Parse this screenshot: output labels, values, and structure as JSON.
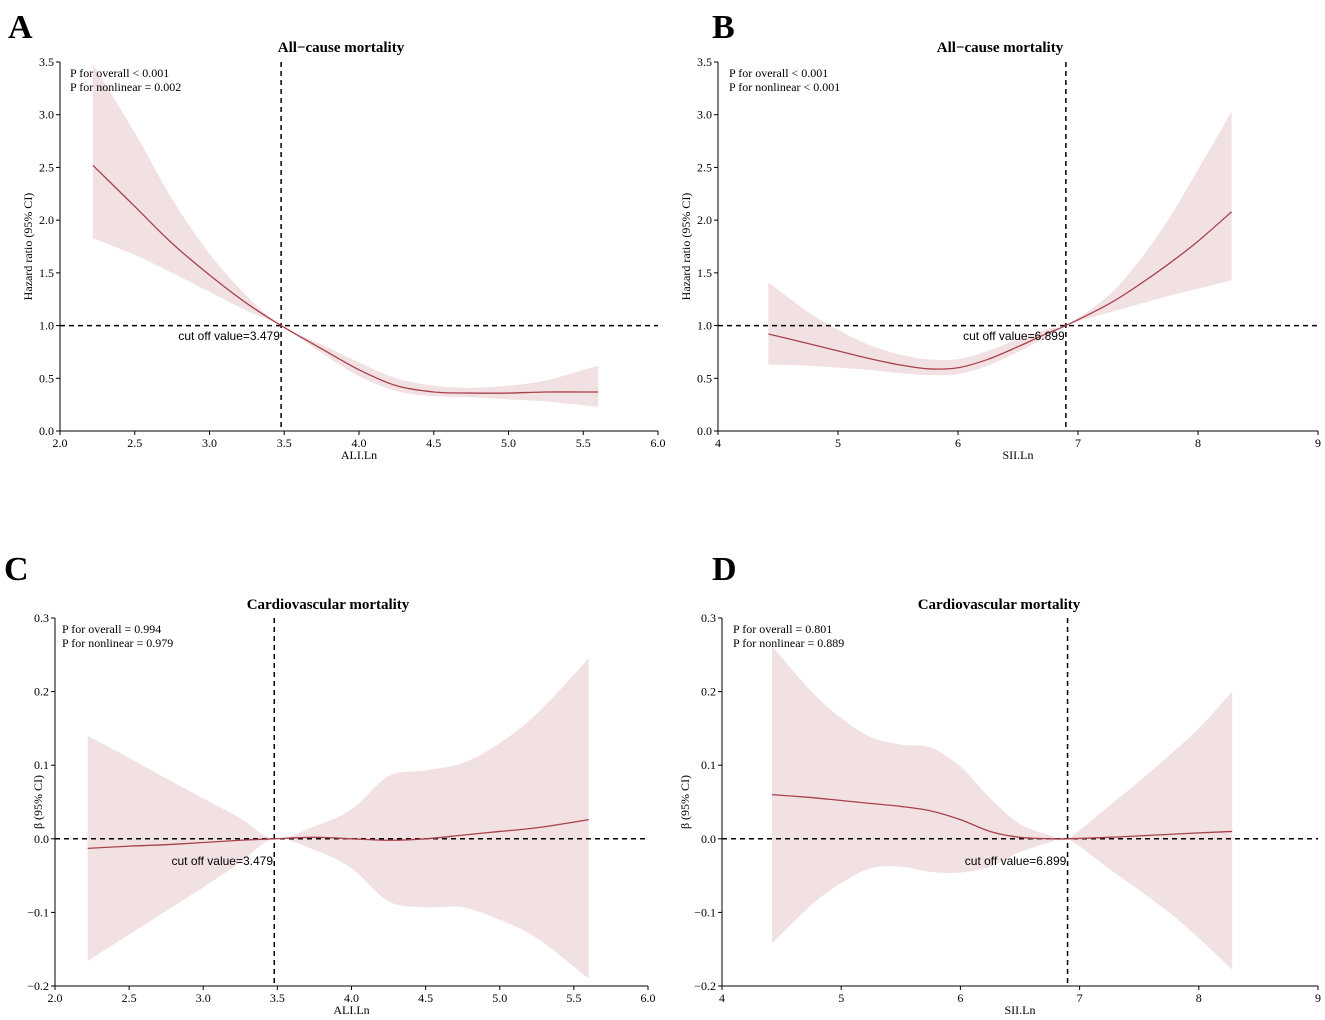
{
  "chart_data": [
    {
      "panel": "A",
      "type": "line",
      "title": "All−cause mortality",
      "xlabel": "ALI.Ln",
      "ylabel": "Hazard ratio (95% CI)",
      "xlim": [
        2.0,
        6.0
      ],
      "ylim": [
        0.0,
        3.5
      ],
      "xticks": [
        2.0,
        2.5,
        3.0,
        3.5,
        4.0,
        4.5,
        5.0,
        5.5,
        6.0
      ],
      "xtick_labels": [
        "2.0",
        "2.5",
        "3.0",
        "3.5",
        "4.0",
        "4.5",
        "5.0",
        "5.5",
        "6.0"
      ],
      "yticks": [
        0.0,
        0.5,
        1.0,
        1.5,
        2.0,
        2.5,
        3.0,
        3.5
      ],
      "ytick_labels": [
        "0.0",
        "0.5",
        "1.0",
        "1.5",
        "2.0",
        "2.5",
        "3.0",
        "3.5"
      ],
      "ref_y": 1.0,
      "cutoff_x": 3.479,
      "annotations": [
        "P for overall < 0.001",
        "P for nonlinear = 0.002"
      ],
      "cutoff_label": "cut off value=3.479",
      "cutoff_label_pos": "below",
      "x": [
        2.22,
        2.5,
        2.75,
        3.0,
        3.25,
        3.479,
        3.75,
        4.0,
        4.25,
        4.5,
        4.75,
        5.0,
        5.25,
        5.6
      ],
      "y": [
        2.52,
        2.13,
        1.78,
        1.48,
        1.21,
        1.0,
        0.78,
        0.58,
        0.43,
        0.37,
        0.36,
        0.36,
        0.37,
        0.37
      ],
      "lower": [
        1.83,
        1.67,
        1.5,
        1.32,
        1.14,
        1.0,
        0.74,
        0.52,
        0.38,
        0.33,
        0.32,
        0.3,
        0.28,
        0.23
      ],
      "upper": [
        3.48,
        2.83,
        2.2,
        1.68,
        1.28,
        1.0,
        0.82,
        0.65,
        0.5,
        0.43,
        0.41,
        0.43,
        0.48,
        0.62
      ]
    },
    {
      "panel": "B",
      "type": "line",
      "title": "All−cause mortality",
      "xlabel": "SII.Ln",
      "ylabel": "Hazard ratio (95% CI)",
      "xlim": [
        4,
        9
      ],
      "ylim": [
        0.0,
        3.5
      ],
      "xticks": [
        4,
        5,
        6,
        7,
        8,
        9
      ],
      "xtick_labels": [
        "4",
        "5",
        "6",
        "7",
        "8",
        "9"
      ],
      "yticks": [
        0.0,
        0.5,
        1.0,
        1.5,
        2.0,
        2.5,
        3.0,
        3.5
      ],
      "ytick_labels": [
        "0.0",
        "0.5",
        "1.0",
        "1.5",
        "2.0",
        "2.5",
        "3.0",
        "3.5"
      ],
      "ref_y": 1.0,
      "cutoff_x": 6.899,
      "annotations": [
        "P for overall < 0.001",
        "P for nonlinear < 0.001"
      ],
      "cutoff_label": "cut off value=6.899",
      "cutoff_label_pos": "below",
      "x": [
        4.42,
        4.75,
        5.0,
        5.25,
        5.5,
        5.75,
        6.0,
        6.25,
        6.5,
        6.75,
        6.899,
        7.25,
        7.5,
        7.75,
        8.0,
        8.28
      ],
      "y": [
        0.92,
        0.83,
        0.76,
        0.69,
        0.63,
        0.59,
        0.6,
        0.68,
        0.8,
        0.93,
        1.0,
        1.2,
        1.38,
        1.58,
        1.8,
        2.08
      ],
      "lower": [
        0.63,
        0.62,
        0.6,
        0.58,
        0.55,
        0.53,
        0.54,
        0.62,
        0.75,
        0.9,
        1.0,
        1.12,
        1.2,
        1.28,
        1.35,
        1.43
      ],
      "upper": [
        1.41,
        1.13,
        0.96,
        0.82,
        0.73,
        0.68,
        0.68,
        0.76,
        0.87,
        0.97,
        1.0,
        1.28,
        1.6,
        2.0,
        2.48,
        3.03
      ]
    },
    {
      "panel": "C",
      "type": "line",
      "title": "Cardiovascular mortality",
      "xlabel": "ALI.Ln",
      "ylabel": "β (95% CI)",
      "xlim": [
        2.0,
        6.0
      ],
      "ylim": [
        -0.2,
        0.3
      ],
      "xticks": [
        2.0,
        2.5,
        3.0,
        3.5,
        4.0,
        4.5,
        5.0,
        5.5,
        6.0
      ],
      "xtick_labels": [
        "2.0",
        "2.5",
        "3.0",
        "3.5",
        "4.0",
        "4.5",
        "5.0",
        "5.5",
        "6.0"
      ],
      "yticks": [
        -0.2,
        -0.1,
        0.0,
        0.1,
        0.2,
        0.3
      ],
      "ytick_labels": [
        "−0.2",
        "−0.1",
        "0.0",
        "0.1",
        "0.2",
        "0.3"
      ],
      "ref_y": 0.0,
      "cutoff_x": 3.479,
      "annotations": [
        "P for overall = 0.994",
        "P for nonlinear = 0.979"
      ],
      "cutoff_label": "cut off value=3.479",
      "cutoff_label_pos": "below",
      "x": [
        2.22,
        2.5,
        2.75,
        3.0,
        3.25,
        3.479,
        3.75,
        4.0,
        4.25,
        4.5,
        4.75,
        5.0,
        5.25,
        5.6
      ],
      "y": [
        -0.013,
        -0.01,
        -0.008,
        -0.005,
        -0.002,
        0.0,
        0.002,
        0.0,
        -0.002,
        0.0,
        0.005,
        0.01,
        0.015,
        0.026
      ],
      "lower": [
        -0.166,
        -0.13,
        -0.098,
        -0.066,
        -0.032,
        0.0,
        -0.015,
        -0.04,
        -0.085,
        -0.093,
        -0.093,
        -0.11,
        -0.135,
        -0.19
      ],
      "upper": [
        0.14,
        0.11,
        0.082,
        0.055,
        0.028,
        0.0,
        0.017,
        0.04,
        0.085,
        0.093,
        0.103,
        0.13,
        0.17,
        0.245
      ]
    },
    {
      "panel": "D",
      "type": "line",
      "title": "Cardiovascular mortality",
      "xlabel": "SII.Ln",
      "ylabel": "β (95% CI)",
      "xlim": [
        4,
        9
      ],
      "ylim": [
        -0.2,
        0.3
      ],
      "xticks": [
        4,
        5,
        6,
        7,
        8,
        9
      ],
      "xtick_labels": [
        "4",
        "5",
        "6",
        "7",
        "8",
        "9"
      ],
      "yticks": [
        -0.2,
        -0.1,
        0.0,
        0.1,
        0.2,
        0.3
      ],
      "ytick_labels": [
        "−0.2",
        "−0.1",
        "0.0",
        "0.1",
        "0.2",
        "0.3"
      ],
      "ref_y": 0.0,
      "cutoff_x": 6.899,
      "annotations": [
        "P for overall = 0.801",
        "P for nonlinear = 0.889"
      ],
      "cutoff_label": "cut off value=6.899",
      "cutoff_label_pos": "below",
      "x": [
        4.42,
        4.75,
        5.0,
        5.25,
        5.5,
        5.75,
        6.0,
        6.25,
        6.5,
        6.75,
        6.899,
        7.25,
        7.5,
        7.75,
        8.0,
        8.28
      ],
      "y": [
        0.06,
        0.056,
        0.052,
        0.048,
        0.044,
        0.038,
        0.026,
        0.01,
        0.002,
        0.0,
        0.0,
        0.002,
        0.004,
        0.006,
        0.008,
        0.01
      ],
      "lower": [
        -0.142,
        -0.09,
        -0.06,
        -0.04,
        -0.038,
        -0.045,
        -0.046,
        -0.038,
        -0.018,
        -0.005,
        0.0,
        -0.041,
        -0.07,
        -0.1,
        -0.135,
        -0.178
      ],
      "upper": [
        0.262,
        0.2,
        0.164,
        0.138,
        0.128,
        0.124,
        0.098,
        0.055,
        0.02,
        0.005,
        0.0,
        0.045,
        0.078,
        0.113,
        0.15,
        0.2
      ]
    }
  ],
  "style": {
    "line_color": "#a8414a",
    "band_color": "#f2e1e3",
    "axis_color": "#000000"
  }
}
